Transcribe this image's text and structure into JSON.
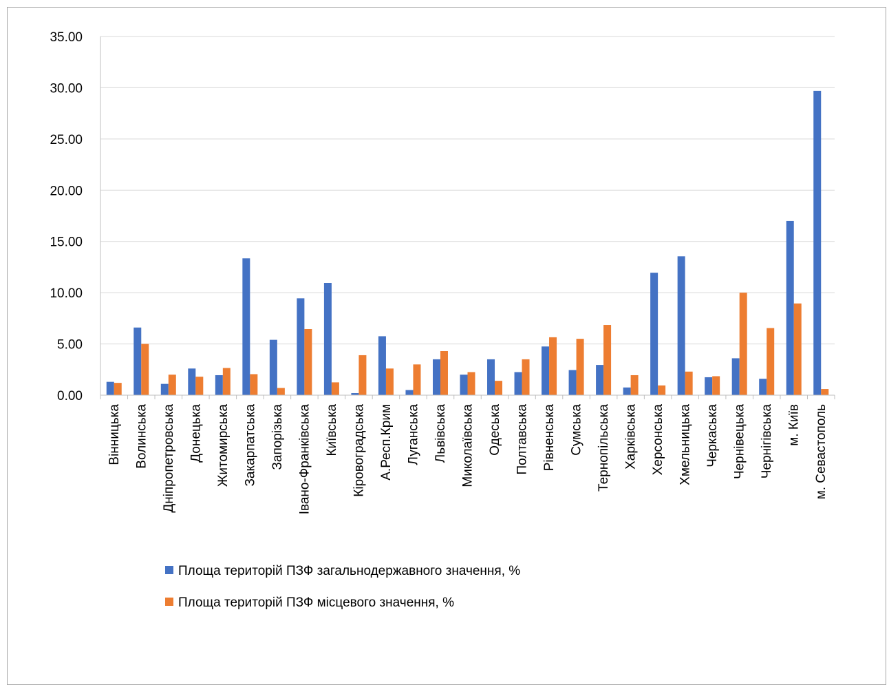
{
  "chart_data": {
    "type": "bar",
    "ylim": [
      0,
      35
    ],
    "y_ticks": [
      "0.00",
      "5.00",
      "10.00",
      "15.00",
      "20.00",
      "25.00",
      "30.00",
      "35.00"
    ],
    "grid": true,
    "legend_position": "bottom-center",
    "categories": [
      "Вінницька",
      "Волинська",
      "Дніпропетровська",
      "Донецька",
      "Житомирська",
      "Закарпатська",
      "Запорізька",
      "Івано-Франківська",
      "Київська",
      "Кіровоградська",
      "А.Респ.Крим",
      "Луганська",
      "Львівська",
      "Миколаївська",
      "Одеська",
      "Полтавська",
      "Рівненська",
      "Сумська",
      "Тернопільська",
      "Харківська",
      "Херсонська",
      "Хмельницька",
      "Черкаська",
      "Чернівецька",
      "Чернігівська",
      "м. Київ",
      "м. Севастополь"
    ],
    "series": [
      {
        "name": "Площа територій ПЗФ загальнодержавного значення, %",
        "color": "#4472c4",
        "values": [
          1.3,
          6.6,
          1.1,
          2.6,
          1.95,
          13.35,
          5.4,
          9.45,
          10.95,
          0.2,
          5.75,
          0.5,
          3.5,
          2.0,
          3.5,
          2.25,
          4.75,
          2.45,
          2.95,
          0.75,
          11.95,
          13.55,
          1.75,
          3.6,
          1.6,
          17.0,
          29.7
        ]
      },
      {
        "name": "Площа територій ПЗФ місцевого значення, %",
        "color": "#ed7d31",
        "values": [
          1.2,
          5.0,
          2.0,
          1.8,
          2.65,
          2.05,
          0.7,
          6.45,
          1.25,
          3.9,
          2.6,
          3.0,
          4.3,
          2.25,
          1.4,
          3.5,
          5.65,
          5.5,
          6.85,
          1.95,
          0.95,
          2.3,
          1.85,
          10.0,
          6.55,
          8.95,
          0.6
        ]
      }
    ]
  }
}
